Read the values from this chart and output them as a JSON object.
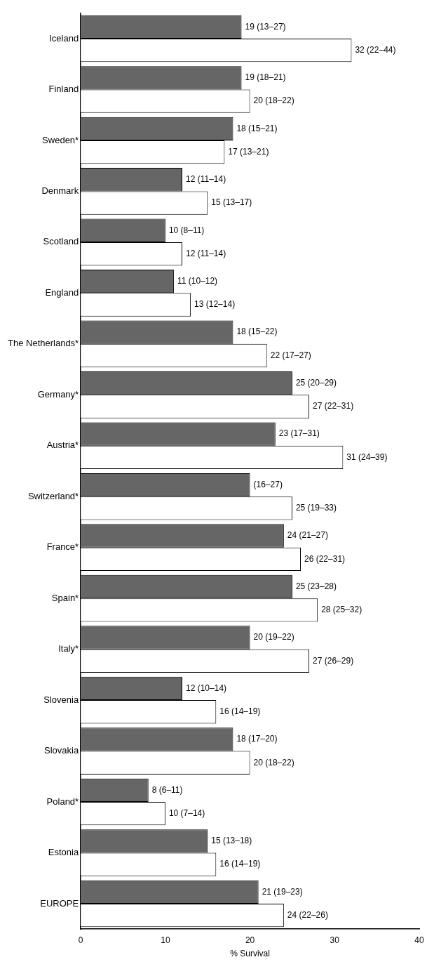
{
  "chart_data": {
    "type": "bar",
    "orientation": "horizontal",
    "xlabel": "% Survival",
    "xlim": [
      0,
      40
    ],
    "xticks": [
      0,
      10,
      20,
      30,
      40
    ],
    "grid": false,
    "legend": false,
    "categories": [
      "Iceland",
      "Finland",
      "Sweden*",
      "Denmark",
      "Scotland",
      "England",
      "The Netherlands*",
      "Germany*",
      "Austria*",
      "Switzerland*",
      "France*",
      "Spain*",
      "Italy*",
      "Slovenia",
      "Slovakia",
      "Poland*",
      "Estonia",
      "EUROPE"
    ],
    "series": [
      {
        "color": "#666666",
        "values": [
          19,
          19,
          18,
          12,
          10,
          11,
          18,
          25,
          23,
          20,
          24,
          25,
          20,
          12,
          18,
          8,
          15,
          21
        ],
        "value_labels": [
          "19 (13–27)",
          "19 (18–21)",
          "18 (15–21)",
          "12 (11–14)",
          "10 (8–11)",
          "11 (10–12)",
          "18 (15–22)",
          "25 (20–29)",
          "23 (17–31)",
          "(16–27)",
          "24 (21–27)",
          "25 (23–28)",
          "20 (19–22)",
          "12 (10–14)",
          "18 (17–20)",
          "8 (6–11)",
          "15 (13–18)",
          "21 (19–23)"
        ]
      },
      {
        "color": "#ffffff",
        "values": [
          32,
          20,
          17,
          15,
          12,
          13,
          22,
          27,
          31,
          25,
          26,
          28,
          27,
          16,
          20,
          10,
          16,
          24
        ],
        "value_labels": [
          "32 (22–44)",
          "20 (18–22)",
          "17 (13–21)",
          "15 (13–17)",
          "12 (11–14)",
          "13 (12–14)",
          "22 (17–27)",
          "27 (22–31)",
          "31 (24–39)",
          "25 (19–33)",
          "26 (22–31)",
          "28 (25–32)",
          "27 (26–29)",
          "16 (14–19)",
          "20 (18–22)",
          "10 (7–14)",
          "16 (14–19)",
          "24 (22–26)"
        ]
      }
    ]
  }
}
